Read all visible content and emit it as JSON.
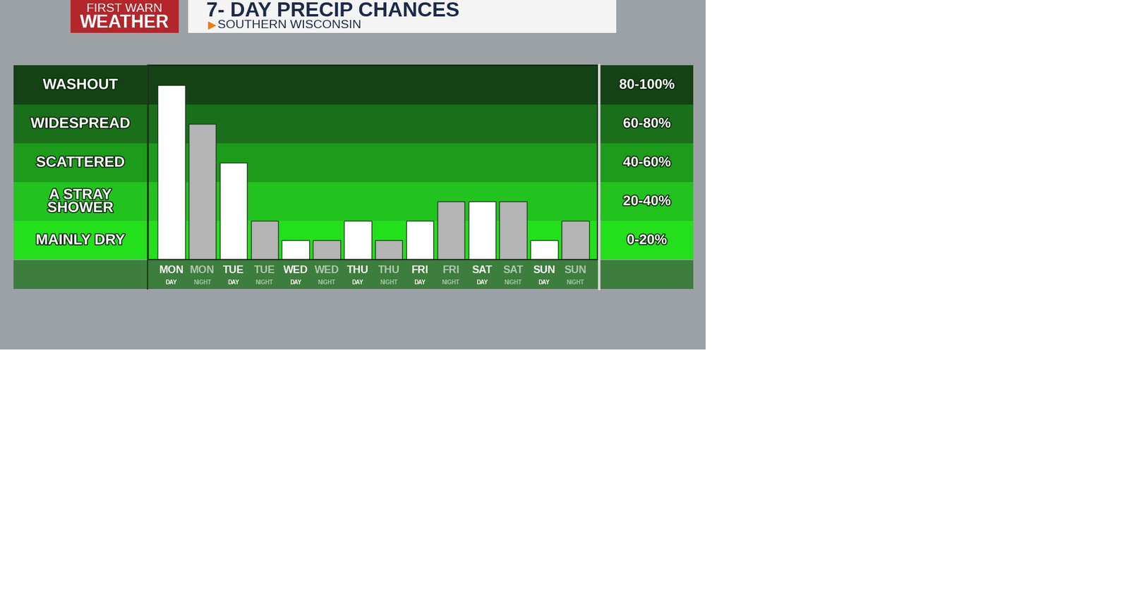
{
  "chart_data": {
    "type": "bar",
    "title": "7- DAY PRECIP CHANCES",
    "subtitle": "SOUTHERN WISCONSIN",
    "logo": [
      "FIRST WARN",
      "WEATHER"
    ],
    "categories": [
      "MON\nDAY",
      "MON\nNIGHT",
      "TUE\nDAY",
      "TUE\nNIGHT",
      "WED\nDAY",
      "WED\nNIGHT",
      "THU\nDAY",
      "THU\nNIGHT",
      "FRI\nDAY",
      "FRI\nNIGHT",
      "SAT\nDAY",
      "SAT\nNIGHT",
      "SUN\nDAY",
      "SUN\nNIGHT"
    ],
    "values": [
      90,
      70,
      50,
      20,
      10,
      10,
      20,
      10,
      20,
      30,
      30,
      30,
      10,
      20
    ],
    "colors": [
      "#ffffff",
      "#b4b4b4",
      "#ffffff",
      "#b4b4b4",
      "#ffffff",
      "#b4b4b4",
      "#ffffff",
      "#b4b4b4",
      "#ffffff",
      "#b4b4b4",
      "#ffffff",
      "#b4b4b4",
      "#ffffff",
      "#b4b4b4"
    ],
    "ylim": [
      0,
      100
    ],
    "yticks": [
      {
        "value": 10,
        "label": "MAINLY DRY"
      },
      {
        "value": 30,
        "label": "A STRAY\nSHOWER"
      },
      {
        "value": 50,
        "label": "SCATTERED"
      },
      {
        "value": 70,
        "label": "WIDESPREAD"
      },
      {
        "value": 90,
        "label": "WASHOUT"
      }
    ],
    "y2lim": [
      0,
      100
    ],
    "y2ticks": [
      {
        "value": 10,
        "label": "0-20%"
      },
      {
        "value": 30,
        "label": "20-40%"
      },
      {
        "value": 50,
        "label": "40-60%"
      },
      {
        "value": 70,
        "label": "60-80%"
      },
      {
        "value": 90,
        "label": "80-100%"
      }
    ],
    "bands": [
      {
        "from": 0,
        "to": 20,
        "color": "#24df1c"
      },
      {
        "from": 20,
        "to": 40,
        "color": "#22c31e"
      },
      {
        "from": 40,
        "to": 60,
        "color": "#1d9b1b"
      },
      {
        "from": 60,
        "to": 80,
        "color": "#1a701a"
      },
      {
        "from": 80,
        "to": 100,
        "color": "#144214"
      }
    ]
  }
}
